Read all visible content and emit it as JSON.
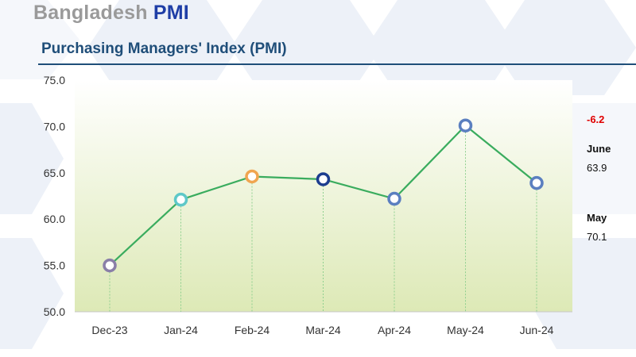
{
  "header": {
    "country": "Bangladesh",
    "pmi": "PMI"
  },
  "colors": {
    "title_blue": "#1f4e79",
    "pmi_blue": "#1f3ea6",
    "line_green": "#3aac5e",
    "change_red": "#e00000"
  },
  "chart_data": {
    "type": "line",
    "title": "Purchasing Managers' Index (PMI)",
    "xlabel": "",
    "ylabel": "",
    "categories": [
      "Dec-23",
      "Jan-24",
      "Feb-24",
      "Mar-24",
      "Apr-24",
      "May-24",
      "Jun-24"
    ],
    "series": [
      {
        "values": [
          55.0,
          62.1,
          64.6,
          64.3,
          62.2,
          70.1,
          63.9
        ]
      }
    ],
    "marker_colors": [
      "#8a7fa8",
      "#5ec8c8",
      "#f0a550",
      "#1d3d8f",
      "#5b7fc0",
      "#5b7fc0",
      "#5b7fc0"
    ],
    "ylim": [
      50.0,
      75.0
    ],
    "yticks": [
      "50.0",
      "55.0",
      "60.0",
      "65.0",
      "70.0",
      "75.0"
    ],
    "grid": false,
    "drop_lines": true,
    "background_gradient": [
      "#ffffff",
      "#dde9b6"
    ]
  },
  "side_panel": {
    "change": "-6.2",
    "current": {
      "label": "June",
      "value": "63.9"
    },
    "previous": {
      "label": "May",
      "value": "70.1"
    }
  }
}
